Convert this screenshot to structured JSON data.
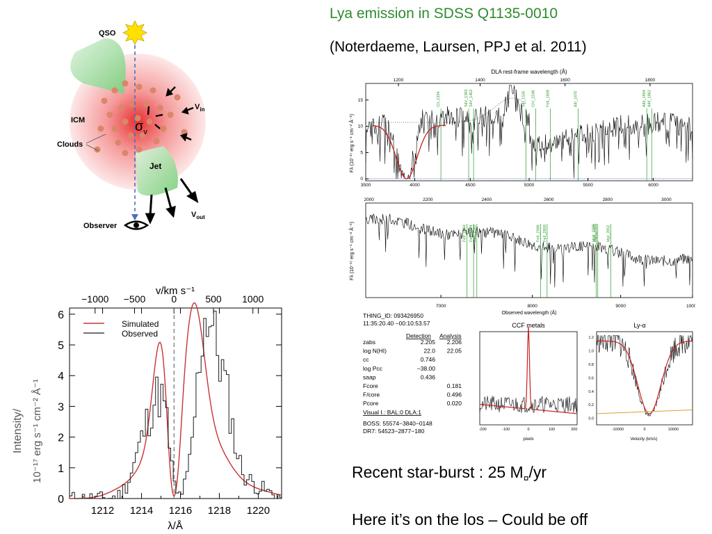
{
  "slide": {
    "title": "Lya emission in SDSS Q1135-0010",
    "citation": "(Noterdaeme, Laursen, PPJ et al. 2011)",
    "bullet1_main": "Recent star-burst : 25 M",
    "bullet1_sub": "¤",
    "bullet1_tail": "/yr",
    "bullet2": "Here it’s on the los – Could be off"
  },
  "cartoon": {
    "qso": "QSO",
    "icm": "ICM",
    "clouds": "Clouds",
    "sigma": "σ",
    "sigma_sub": "v",
    "v_in": "V",
    "v_in_sub": "in",
    "jet": "Jet",
    "v_out": "V",
    "v_out_sub": "out",
    "observer": "Observer"
  },
  "chart_data": [
    {
      "type": "line",
      "xlabel": "λ/Å",
      "ylabel_line1": "Intensity/",
      "ylabel_line2": "10⁻¹⁷ erg s⁻¹ cm⁻² Å⁻¹",
      "top_axis_label": "v/km s⁻¹",
      "xlim": [
        1210.3,
        1221.2
      ],
      "ylim": [
        0,
        6.2
      ],
      "x_ticks": [
        "1212",
        "1214",
        "1216",
        "1218",
        "1220"
      ],
      "y_ticks": [
        "0",
        "1",
        "2",
        "3",
        "4",
        "5",
        "6"
      ],
      "top_ticks": [
        "−1000",
        "−500",
        "0",
        "500",
        "1000"
      ],
      "legend_position": "top-left",
      "series": [
        {
          "name": "Simulated",
          "color": "#c83232"
        },
        {
          "name": "Observed",
          "color": "#1a1a1a"
        }
      ]
    },
    {
      "type": "line",
      "top_axis_label": "DLA rest-frame wavelength (Å)",
      "top_ticks": [
        "1200",
        "1400",
        "1600",
        "1800"
      ],
      "x_ticks": [
        "3500",
        "4000",
        "4500",
        "5000",
        "5500",
        "6000"
      ],
      "y_ticks": [
        "0",
        "5",
        "10",
        "15"
      ],
      "ylabel": "Fλ (10⁻¹⁷ erg s⁻¹ cm⁻² Å⁻¹)",
      "line_ids": [
        "CII_1334",
        "SiIV_1393",
        "SiIV_1402",
        "SiII_1526",
        "CIV_1548",
        "FeII_1608",
        "AlII_1670",
        "AlIII_1854",
        "AlIII_1862"
      ]
    },
    {
      "type": "line",
      "top_ticks": [
        "2000",
        "2200",
        "2400",
        "2600",
        "2800",
        "3000"
      ],
      "x_ticks": [
        "7000",
        "8000",
        "9000",
        "10000"
      ],
      "xlabel": "Observed wavelength (Å)",
      "ylabel": "Fλ (10⁻¹⁷ erg s⁻¹ cm⁻² Å⁻¹)",
      "line_ids": [
        "FeII_2344",
        "FeII_2374",
        "FeII_2382",
        "FeII_2586",
        "FeII_2600",
        "MgII_2796",
        "MgII_2803",
        "MgI_2852"
      ]
    },
    {
      "type": "line",
      "title": "CCF metals",
      "xlabel": "pixels",
      "x_ticks": [
        "-200",
        "-100",
        "0",
        "100",
        "200"
      ]
    },
    {
      "type": "line",
      "title": "Ly-α",
      "xlabel": "Velocity (km/s)",
      "x_ticks": [
        "-10000",
        "0",
        "10000"
      ],
      "y_ticks": [
        "0.0",
        "0.2",
        "0.4",
        "0.6",
        "0.8",
        "1.0",
        "1.2"
      ]
    }
  ],
  "info_table": {
    "thing_id": "THING_ID:  093426950",
    "coords": "11:35:20.40  −00:10:53.57",
    "col_detection": "Detection",
    "col_analysis": "Analysis",
    "rows": [
      {
        "label": "zabs",
        "det": "2.205",
        "ana": "2.206"
      },
      {
        "label": "log N(HI)",
        "det": "22.0",
        "ana": "22.05"
      },
      {
        "label": "cc",
        "det": "0.746",
        "ana": ""
      },
      {
        "label": "log Pcc",
        "det": "−38.00",
        "ana": ""
      },
      {
        "label": "saap",
        "det": "0.436",
        "ana": ""
      },
      {
        "label": "Fcore",
        "det": "",
        "ana": "0.181"
      },
      {
        "label": "F/core",
        "det": "",
        "ana": "0.496"
      },
      {
        "label": "Pcore",
        "det": "",
        "ana": "0.020"
      }
    ],
    "visual": "Visual I.: BAL:0  DLA:1",
    "boss": "BOSS: 55574−3840−0148",
    "dr7": "DR7:   54523−2877−180"
  }
}
